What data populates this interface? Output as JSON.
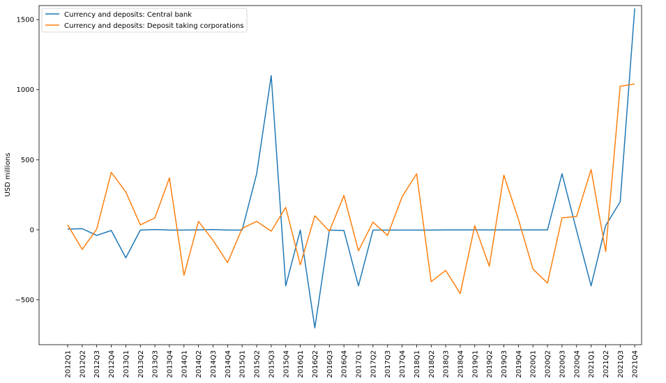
{
  "chart_data": {
    "type": "line",
    "title": "",
    "xlabel": "",
    "ylabel": "USD millions",
    "ylim": [
      -820,
      1600
    ],
    "yticks": [
      -500,
      0,
      500,
      1000,
      1500
    ],
    "ytick_labels": [
      "−500",
      "0",
      "500",
      "1000",
      "1500"
    ],
    "grid": false,
    "legend": "top-left",
    "categories": [
      "2012Q1",
      "2012Q2",
      "2012Q3",
      "2012Q4",
      "2013Q1",
      "2013Q2",
      "2013Q3",
      "2013Q4",
      "2014Q1",
      "2014Q2",
      "2014Q3",
      "2014Q4",
      "2015Q1",
      "2015Q2",
      "2015Q3",
      "2015Q4",
      "2016Q1",
      "2016Q2",
      "2016Q3",
      "2016Q4",
      "2017Q1",
      "2017Q2",
      "2017Q3",
      "2017Q4",
      "2018Q1",
      "2018Q2",
      "2018Q3",
      "2018Q4",
      "2019Q1",
      "2019Q2",
      "2019Q3",
      "2019Q4",
      "2020Q1",
      "2020Q2",
      "2020Q3",
      "2020Q4",
      "2021Q1",
      "2021Q2",
      "2021Q3",
      "2021Q4"
    ],
    "series": [
      {
        "name": "Currency and deposits: Central bank",
        "color": "#1f77b4",
        "values": [
          5,
          8,
          -40,
          -5,
          -200,
          -2,
          2,
          -2,
          -2,
          -1,
          2,
          -2,
          -2,
          400,
          1100,
          -400,
          -2,
          -700,
          -2,
          -5,
          -400,
          -2,
          -2,
          -2,
          -2,
          -2,
          -1,
          -1,
          -1,
          -1,
          -1,
          -1,
          -1,
          -1,
          400,
          -5,
          -400,
          30,
          200,
          1580
        ]
      },
      {
        "name": "Currency and deposits: Deposit taking corporations",
        "color": "#ff7f0e",
        "values": [
          35,
          -140,
          5,
          410,
          270,
          35,
          85,
          370,
          -325,
          60,
          -75,
          -235,
          10,
          60,
          -10,
          160,
          -250,
          100,
          -10,
          245,
          -150,
          55,
          -40,
          235,
          400,
          -370,
          -290,
          -455,
          30,
          -260,
          390,
          75,
          -280,
          -380,
          85,
          95,
          430,
          -155,
          1025,
          1040
        ]
      }
    ]
  }
}
